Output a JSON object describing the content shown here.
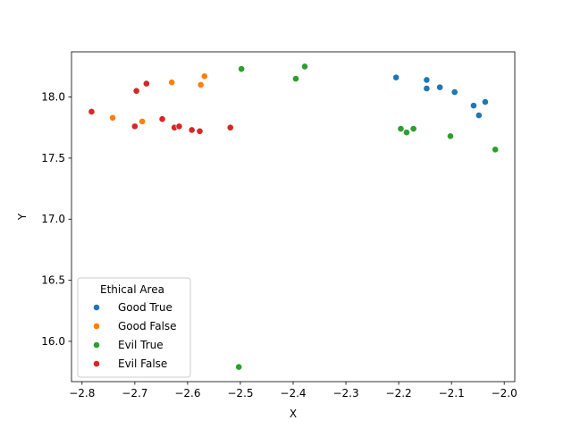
{
  "chart_data": {
    "type": "scatter",
    "title": "",
    "xlabel": "X",
    "ylabel": "Y",
    "xlim": [
      -2.82,
      -1.98
    ],
    "ylim": [
      15.67,
      18.37
    ],
    "xticks": [
      -2.8,
      -2.7,
      -2.6,
      -2.5,
      -2.4,
      -2.3,
      -2.2,
      -2.1,
      -2.0
    ],
    "yticks": [
      16.0,
      16.5,
      17.0,
      17.5,
      18.0
    ],
    "grid": false,
    "legend": {
      "title": "Ethical Area",
      "placement": "lower-left"
    },
    "series": [
      {
        "name": "Good True",
        "color": "#1f77b4",
        "points": [
          {
            "x": -2.205,
            "y": 18.16
          },
          {
            "x": -2.147,
            "y": 18.14
          },
          {
            "x": -2.147,
            "y": 18.07
          },
          {
            "x": -2.122,
            "y": 18.08
          },
          {
            "x": -2.094,
            "y": 18.04
          },
          {
            "x": -2.058,
            "y": 17.93
          },
          {
            "x": -2.036,
            "y": 17.96
          },
          {
            "x": -2.048,
            "y": 17.85
          }
        ]
      },
      {
        "name": "Good False",
        "color": "#ff7f0e",
        "points": [
          {
            "x": -2.742,
            "y": 17.83
          },
          {
            "x": -2.686,
            "y": 17.8
          },
          {
            "x": -2.63,
            "y": 18.12
          },
          {
            "x": -2.575,
            "y": 18.1
          },
          {
            "x": -2.568,
            "y": 18.17
          }
        ]
      },
      {
        "name": "Evil True",
        "color": "#2ca02c",
        "points": [
          {
            "x": -2.498,
            "y": 18.23
          },
          {
            "x": -2.378,
            "y": 18.25
          },
          {
            "x": -2.395,
            "y": 18.15
          },
          {
            "x": -2.196,
            "y": 17.74
          },
          {
            "x": -2.185,
            "y": 17.71
          },
          {
            "x": -2.172,
            "y": 17.74
          },
          {
            "x": -2.102,
            "y": 17.68
          },
          {
            "x": -2.017,
            "y": 17.57
          },
          {
            "x": -2.503,
            "y": 15.79
          }
        ]
      },
      {
        "name": "Evil False",
        "color": "#d62728",
        "points": [
          {
            "x": -2.782,
            "y": 17.88
          },
          {
            "x": -2.697,
            "y": 18.05
          },
          {
            "x": -2.678,
            "y": 18.11
          },
          {
            "x": -2.7,
            "y": 17.76
          },
          {
            "x": -2.648,
            "y": 17.82
          },
          {
            "x": -2.625,
            "y": 17.75
          },
          {
            "x": -2.616,
            "y": 17.76
          },
          {
            "x": -2.592,
            "y": 17.73
          },
          {
            "x": -2.577,
            "y": 17.72
          },
          {
            "x": -2.519,
            "y": 17.75
          }
        ]
      }
    ]
  }
}
